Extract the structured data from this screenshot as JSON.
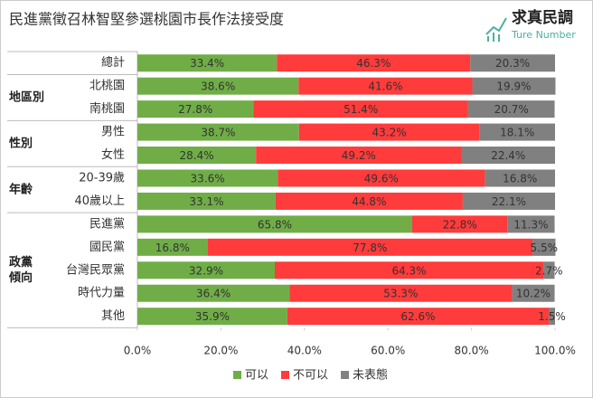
{
  "chart_data": {
    "type": "stacked-barh",
    "title": "民進黨徵召林智堅參選桃園市長作法接受度",
    "logo": {
      "title": "求真民調",
      "subtitle": "Ture Number"
    },
    "categories": [
      "總計",
      "北桃園",
      "南桃園",
      "男性",
      "女性",
      "20-39歲",
      "40歲以上",
      "民進黨",
      "國民黨",
      "台灣民眾黨",
      "時代力量",
      "其他"
    ],
    "row_groups": [
      null,
      "地區別",
      "地區別",
      "性別",
      "性別",
      "年齡",
      "年齡",
      "政黨\n傾向",
      "政黨\n傾向",
      "政黨\n傾向",
      "政黨\n傾向",
      "政黨\n傾向"
    ],
    "series": [
      {
        "name": "可以",
        "color": "#70ad47",
        "values": [
          33.4,
          38.6,
          27.8,
          38.7,
          28.4,
          33.6,
          33.1,
          65.8,
          16.8,
          32.9,
          36.4,
          35.9
        ],
        "value_labels": [
          "33.4%",
          "38.6%",
          "27.8%",
          "38.7%",
          "28.4%",
          "33.6%",
          "33.1%",
          "65.8%",
          "16.8%",
          "32.9%",
          "36.4%",
          "35.9%"
        ]
      },
      {
        "name": "不可以",
        "color": "#ff3b3b",
        "values": [
          46.3,
          41.6,
          51.4,
          43.2,
          49.2,
          49.6,
          44.8,
          22.8,
          77.8,
          64.3,
          53.3,
          62.6
        ],
        "value_labels": [
          "46.3%",
          "41.6%",
          "51.4%",
          "43.2%",
          "49.2%",
          "49.6%",
          "44.8%",
          "22.8%",
          "77.8%",
          "64.3%",
          "53.3%",
          "62.6%"
        ]
      },
      {
        "name": "未表態",
        "color": "#808080",
        "values": [
          20.3,
          19.9,
          20.7,
          18.1,
          22.4,
          16.8,
          22.1,
          11.3,
          5.5,
          2.7,
          10.2,
          1.5
        ],
        "value_labels": [
          "20.3%",
          "19.9%",
          "20.7%",
          "18.1%",
          "22.4%",
          "16.8%",
          "22.1%",
          "11.3%",
          "5.5%",
          "2.7%",
          "10.2%",
          "1.5%"
        ]
      }
    ],
    "xlim": [
      0,
      100
    ],
    "xticks": [
      {
        "value": 0,
        "label": "0.0%"
      },
      {
        "value": 20,
        "label": "20.0%"
      },
      {
        "value": 40,
        "label": "40.0%"
      },
      {
        "value": 60,
        "label": "60.0%"
      },
      {
        "value": 80,
        "label": "80.0%"
      },
      {
        "value": 100,
        "label": "100.0%"
      }
    ],
    "legend": "bottom"
  }
}
